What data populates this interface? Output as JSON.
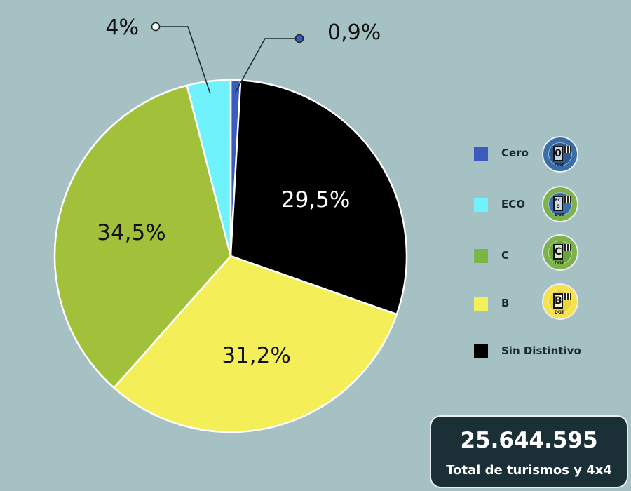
{
  "chart_data": {
    "type": "pie",
    "title": "",
    "slices": [
      {
        "name": "Cero",
        "value": 0.9,
        "label": "0,9%",
        "color": "#3b5bbf",
        "label_color": "#111111"
      },
      {
        "name": "Sin Distintivo",
        "value": 29.5,
        "label": "29,5%",
        "color": "#000000",
        "label_color": "#ffffff"
      },
      {
        "name": "B",
        "value": 31.2,
        "label": "31,2%",
        "color": "#f4ef58",
        "label_color": "#111111"
      },
      {
        "name": "C",
        "value": 34.5,
        "label": "34,5%",
        "color": "#a2c13b",
        "label_color": "#111111"
      },
      {
        "name": "ECO",
        "value": 4.0,
        "label": "4%",
        "color": "#6ff2fb",
        "label_color": "#111111"
      }
    ],
    "legend_placement": "right"
  },
  "legend": {
    "items": [
      {
        "label": "Cero",
        "color": "#3b5bbf",
        "badge_letter": "0",
        "badge_color": "#3a6ea8",
        "badge_inner": "#2c5a90"
      },
      {
        "label": "ECO",
        "color": "#6ff2fb",
        "badge_letter": "ECO",
        "badge_color": "#7fb14a",
        "badge_inner": "#3a6ea8"
      },
      {
        "label": "C",
        "color": "#7ab648",
        "badge_letter": "C",
        "badge_color": "#7fb14a",
        "badge_inner": "#6aa33a"
      },
      {
        "label": "B",
        "color": "#f4ef58",
        "badge_letter": "B",
        "badge_color": "#f6e24a",
        "badge_inner": "#e9d43a"
      },
      {
        "label": "Sin Distintivo",
        "color": "#000000"
      }
    ],
    "badge_brand": "DGT"
  },
  "summary": {
    "total_value": "25.644.595",
    "total_label": "Total de turismos y 4x4"
  }
}
